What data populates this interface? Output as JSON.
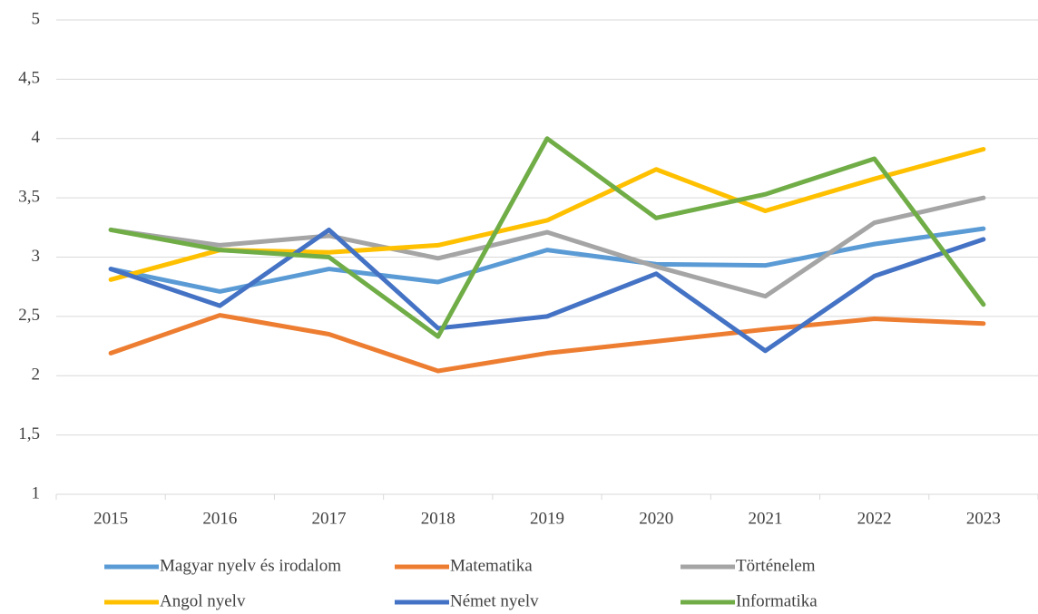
{
  "chart_data": {
    "type": "line",
    "categories": [
      "2015",
      "2016",
      "2017",
      "2018",
      "2019",
      "2020",
      "2021",
      "2022",
      "2023"
    ],
    "ylim": [
      1,
      5
    ],
    "yticks": [
      1,
      {
        "value": 1.5,
        "label": "1,5"
      },
      2,
      {
        "value": 2.5,
        "label": "2,5"
      },
      3,
      {
        "value": 3.5,
        "label": "3,5"
      },
      4,
      {
        "value": 4.5,
        "label": "4,5"
      },
      5
    ],
    "grid": true,
    "legend": "bottom",
    "series": [
      {
        "name": "Magyar nyelv és irodalom",
        "color": "#5b9bd5",
        "values": [
          2.9,
          2.71,
          2.9,
          2.79,
          3.06,
          2.94,
          2.93,
          3.11,
          3.24
        ]
      },
      {
        "name": "Matematika",
        "color": "#ed7d31",
        "values": [
          2.19,
          2.51,
          2.35,
          2.04,
          2.19,
          2.29,
          2.39,
          2.48,
          2.44
        ]
      },
      {
        "name": "Történelem",
        "color": "#a5a5a5",
        "values": [
          3.23,
          3.1,
          3.18,
          2.99,
          3.21,
          2.92,
          2.67,
          3.29,
          3.5
        ]
      },
      {
        "name": "Angol nyelv",
        "color": "#ffc000",
        "values": [
          2.81,
          3.06,
          3.04,
          3.1,
          3.31,
          3.74,
          3.39,
          3.66,
          3.91
        ]
      },
      {
        "name": "Német nyelv",
        "color": "#4472c4",
        "values": [
          2.9,
          2.59,
          3.23,
          2.4,
          2.5,
          2.86,
          2.21,
          2.84,
          3.15
        ]
      },
      {
        "name": "Informatika",
        "color": "#70ad47",
        "values": [
          3.23,
          3.06,
          3.0,
          2.33,
          4.0,
          3.33,
          3.53,
          3.83,
          2.6
        ]
      }
    ]
  }
}
